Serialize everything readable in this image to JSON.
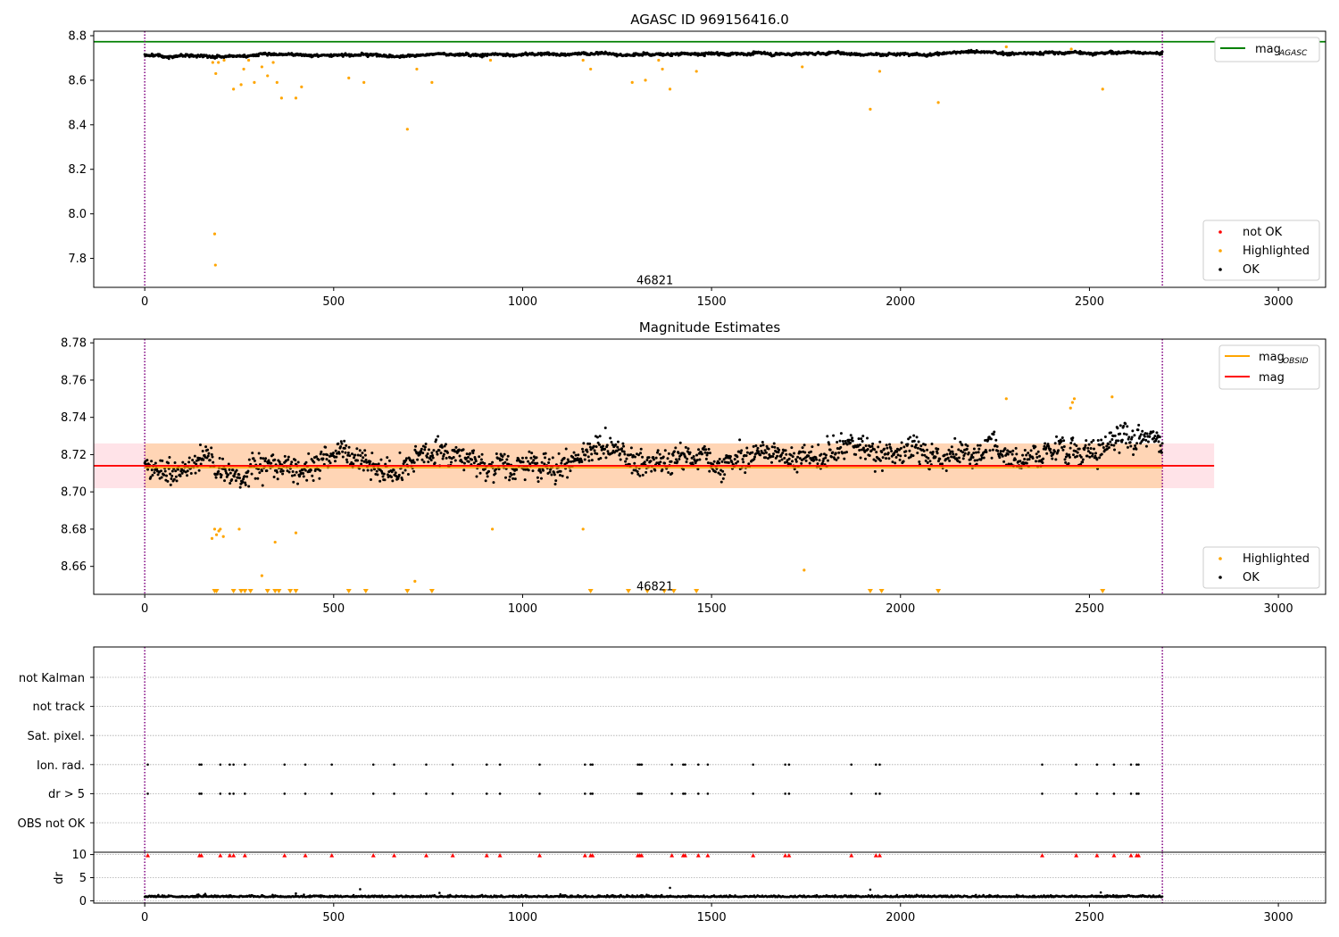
{
  "chart_data": [
    {
      "type": "scatter",
      "title": "AGASC ID 969156416.0",
      "x_ticks": [
        0,
        500,
        1000,
        1500,
        2000,
        2500,
        3000
      ],
      "y_ticks": [
        "7.8",
        "8.0",
        "8.2",
        "8.4",
        "8.6",
        "8.8"
      ],
      "xlim": [
        -135,
        3125
      ],
      "ylim": [
        7.67,
        8.82
      ],
      "obsid_label": "46821",
      "obsid_label_pos": [
        1350,
        7.7
      ],
      "vlines": [
        0,
        2693
      ],
      "mag_agasc": 8.773,
      "legend_top": [
        {
          "label": "mag",
          "sub": "AGASC",
          "color": "#008000"
        }
      ],
      "legend_bottom": [
        {
          "label": "not OK",
          "color": "#ff0000"
        },
        {
          "label": "Highlighted",
          "color": "#ffa500"
        },
        {
          "label": "OK",
          "color": "#000000"
        }
      ],
      "series_ok": {
        "x_start": 0,
        "x_end": 2693,
        "y_base": 8.712
      },
      "highlighted": [
        [
          180,
          8.68
        ],
        [
          185,
          7.91
        ],
        [
          187,
          7.77
        ],
        [
          188,
          8.63
        ],
        [
          195,
          8.68
        ],
        [
          210,
          8.69
        ],
        [
          235,
          8.56
        ],
        [
          255,
          8.58
        ],
        [
          262,
          8.65
        ],
        [
          275,
          8.69
        ],
        [
          290,
          8.59
        ],
        [
          310,
          8.66
        ],
        [
          325,
          8.62
        ],
        [
          340,
          8.68
        ],
        [
          350,
          8.59
        ],
        [
          362,
          8.52
        ],
        [
          400,
          8.52
        ],
        [
          415,
          8.57
        ],
        [
          540,
          8.61
        ],
        [
          580,
          8.59
        ],
        [
          695,
          8.38
        ],
        [
          720,
          8.65
        ],
        [
          760,
          8.59
        ],
        [
          915,
          8.69
        ],
        [
          1160,
          8.69
        ],
        [
          1180,
          8.65
        ],
        [
          1290,
          8.59
        ],
        [
          1325,
          8.6
        ],
        [
          1360,
          8.69
        ],
        [
          1370,
          8.65
        ],
        [
          1390,
          8.56
        ],
        [
          1460,
          8.64
        ],
        [
          1740,
          8.66
        ],
        [
          1920,
          8.47
        ],
        [
          1945,
          8.64
        ],
        [
          2100,
          8.5
        ],
        [
          2280,
          8.75
        ],
        [
          2452,
          8.74
        ],
        [
          2535,
          8.56
        ]
      ]
    },
    {
      "type": "scatter",
      "title": "Magnitude Estimates",
      "x_ticks": [
        0,
        500,
        1000,
        1500,
        2000,
        2500,
        3000
      ],
      "y_ticks": [
        "8.66",
        "8.68",
        "8.70",
        "8.72",
        "8.74",
        "8.76",
        "8.78"
      ],
      "xlim": [
        -135,
        3125
      ],
      "ylim": [
        8.645,
        8.782
      ],
      "obsid_label": "46821",
      "obsid_label_pos": [
        1350,
        8.649
      ],
      "vlines": [
        0,
        2693
      ],
      "mag": 8.714,
      "mag_obsid": 8.713,
      "band_outer": [
        8.702,
        8.726
      ],
      "band_extent": [
        -135,
        2830
      ],
      "obsid_band_extent": [
        0,
        2693
      ],
      "legend_top": [
        {
          "label": "mag",
          "sub": "OBSID",
          "color": "#ffa500"
        },
        {
          "label": "mag",
          "sub": "",
          "color": "#ff0000"
        }
      ],
      "legend_bottom": [
        {
          "label": "Highlighted",
          "color": "#ffa500"
        },
        {
          "label": "OK",
          "color": "#000000"
        }
      ],
      "series_ok": {
        "x_start": 0,
        "x_end": 2693,
        "y_base": 8.712
      },
      "highlighted": [
        [
          178,
          8.675
        ],
        [
          185,
          8.68
        ],
        [
          190,
          8.677
        ],
        [
          196,
          8.679
        ],
        [
          200,
          8.68
        ],
        [
          208,
          8.676
        ],
        [
          250,
          8.68
        ],
        [
          310,
          8.655
        ],
        [
          345,
          8.673
        ],
        [
          400,
          8.678
        ],
        [
          715,
          8.652
        ],
        [
          920,
          8.68
        ],
        [
          1160,
          8.68
        ],
        [
          1745,
          8.658
        ],
        [
          2280,
          8.75
        ],
        [
          2450,
          8.745
        ],
        [
          2455,
          8.748
        ],
        [
          2460,
          8.75
        ],
        [
          2560,
          8.751
        ]
      ],
      "off_scale_x": [
        185,
        190,
        235,
        255,
        265,
        280,
        325,
        345,
        355,
        385,
        400,
        540,
        585,
        695,
        760,
        1180,
        1280,
        1330,
        1375,
        1400,
        1460,
        1920,
        1950,
        2100,
        2535
      ]
    },
    {
      "type": "scatter",
      "flags": [
        "not Kalman",
        "not track",
        "Sat. pixel.",
        "Ion. rad.",
        "dr > 5",
        "OBS not OK"
      ],
      "x_ticks": [
        0,
        500,
        1000,
        1500,
        2000,
        2500,
        3000
      ],
      "xlim": [
        -135,
        3125
      ],
      "vlines": [
        0,
        2693
      ],
      "flag_x": [
        8,
        145,
        150,
        200,
        225,
        235,
        265,
        370,
        425,
        495,
        605,
        660,
        745,
        815,
        905,
        940,
        1045,
        1165,
        1180,
        1185,
        1305,
        1310,
        1315,
        1395,
        1425,
        1430,
        1465,
        1490,
        1610,
        1695,
        1705,
        1870,
        1935,
        1945,
        2375,
        2465,
        2520,
        2565,
        2610,
        2625,
        2630
      ]
    },
    {
      "type": "scatter",
      "ylabel": "dr",
      "y_ticks": [
        "0",
        "5",
        "10"
      ],
      "x_ticks": [
        "0",
        "500",
        "1000",
        "1500",
        "2000",
        "2500",
        "3000"
      ],
      "xlim": [
        -135,
        3125
      ],
      "ylim": [
        -0.5,
        10.5
      ],
      "vlines": [
        0,
        2693
      ],
      "dr_base": 0.8,
      "dr_outliers": [
        [
          570,
          2.5
        ],
        [
          1390,
          2.8
        ],
        [
          1920,
          2.4
        ],
        [
          2530,
          1.8
        ],
        [
          160,
          1.5
        ],
        [
          780,
          1.7
        ],
        [
          400,
          1.6
        ],
        [
          1100,
          1.4
        ]
      ],
      "clipped_x": [
        8,
        145,
        150,
        200,
        225,
        235,
        265,
        370,
        425,
        495,
        605,
        660,
        745,
        815,
        905,
        940,
        1045,
        1165,
        1180,
        1185,
        1305,
        1310,
        1315,
        1395,
        1425,
        1430,
        1465,
        1490,
        1610,
        1695,
        1705,
        1870,
        1935,
        1945,
        2375,
        2465,
        2520,
        2565,
        2610,
        2625,
        2630
      ]
    }
  ],
  "colors": {
    "ok": "#000000",
    "highlighted": "#ffa500",
    "not_ok": "#ff0000",
    "agasc": "#008000",
    "mag": "#ff0000",
    "obsid": "#ffa500",
    "vline": "#800080"
  }
}
